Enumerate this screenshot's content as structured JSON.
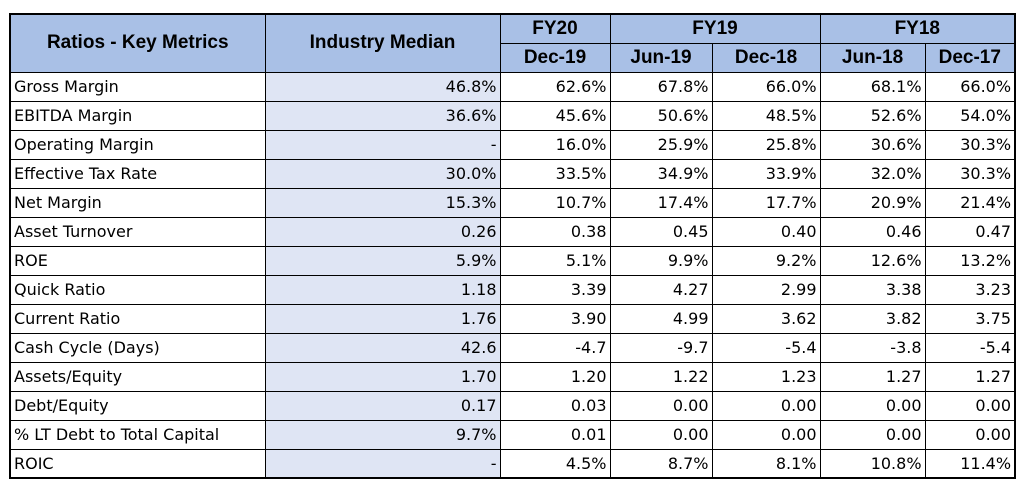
{
  "header": {
    "metric_col": "Ratios - Key Metrics",
    "median_col": "Industry Median",
    "fiscal_years": [
      {
        "label": "FY20",
        "span": 1
      },
      {
        "label": "FY19",
        "span": 2
      },
      {
        "label": "FY18",
        "span": 2
      }
    ],
    "periods": [
      "Dec-19",
      "Jun-19",
      "Dec-18",
      "Jun-18",
      "Dec-17"
    ]
  },
  "rows": [
    {
      "metric": "Gross Margin",
      "median": "46.8%",
      "values": [
        "62.6%",
        "67.8%",
        "66.0%",
        "68.1%",
        "66.0%"
      ]
    },
    {
      "metric": "EBITDA Margin",
      "median": "36.6%",
      "values": [
        "45.6%",
        "50.6%",
        "48.5%",
        "52.6%",
        "54.0%"
      ]
    },
    {
      "metric": "Operating Margin",
      "median": "-",
      "values": [
        "16.0%",
        "25.9%",
        "25.8%",
        "30.6%",
        "30.3%"
      ]
    },
    {
      "metric": "Effective Tax Rate",
      "median": "30.0%",
      "values": [
        "33.5%",
        "34.9%",
        "33.9%",
        "32.0%",
        "30.3%"
      ]
    },
    {
      "metric": "Net Margin",
      "median": "15.3%",
      "values": [
        "10.7%",
        "17.4%",
        "17.7%",
        "20.9%",
        "21.4%"
      ]
    },
    {
      "metric": "Asset Turnover",
      "median": "0.26",
      "values": [
        "0.38",
        "0.45",
        "0.40",
        "0.46",
        "0.47"
      ]
    },
    {
      "metric": "ROE",
      "median": "5.9%",
      "values": [
        "5.1%",
        "9.9%",
        "9.2%",
        "12.6%",
        "13.2%"
      ]
    },
    {
      "metric": "Quick Ratio",
      "median": "1.18",
      "values": [
        "3.39",
        "4.27",
        "2.99",
        "3.38",
        "3.23"
      ]
    },
    {
      "metric": "Current Ratio",
      "median": "1.76",
      "values": [
        "3.90",
        "4.99",
        "3.62",
        "3.82",
        "3.75"
      ]
    },
    {
      "metric": "Cash Cycle (Days)",
      "median": "42.6",
      "values": [
        "-4.7",
        "-9.7",
        "-5.4",
        "-3.8",
        "-5.4"
      ]
    },
    {
      "metric": "Assets/Equity",
      "median": "1.70",
      "values": [
        "1.20",
        "1.22",
        "1.23",
        "1.27",
        "1.27"
      ]
    },
    {
      "metric": "Debt/Equity",
      "median": "0.17",
      "values": [
        "0.03",
        "0.00",
        "0.00",
        "0.00",
        "0.00"
      ]
    },
    {
      "metric": "% LT Debt to Total Capital",
      "median": "9.7%",
      "values": [
        "0.01",
        "0.00",
        "0.00",
        "0.00",
        "0.00"
      ]
    },
    {
      "metric": "ROIC",
      "median": "-",
      "values": [
        "4.5%",
        "8.7%",
        "8.1%",
        "10.8%",
        "11.4%"
      ]
    }
  ],
  "colors": {
    "header_fill": "#a9c0e6",
    "median_fill": "#dfe5f4",
    "border": "#000000"
  }
}
